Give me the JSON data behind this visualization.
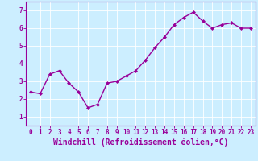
{
  "x": [
    0,
    1,
    2,
    3,
    4,
    5,
    6,
    7,
    8,
    9,
    10,
    11,
    12,
    13,
    14,
    15,
    16,
    17,
    18,
    19,
    20,
    21,
    22,
    23
  ],
  "y": [
    2.4,
    2.3,
    3.4,
    3.6,
    2.9,
    2.4,
    1.5,
    1.7,
    2.9,
    3.0,
    3.3,
    3.6,
    4.2,
    4.9,
    5.5,
    6.2,
    6.6,
    6.9,
    6.4,
    6.0,
    6.2,
    6.3,
    6.0,
    6.0
  ],
  "line_color": "#990099",
  "marker": "D",
  "marker_size": 2.0,
  "bg_color": "#cceeff",
  "grid_color": "#aaddcc",
  "xlabel": "Windchill (Refroidissement éolien,°C)",
  "xlabel_color": "#990099",
  "tick_color": "#990099",
  "ylim": [
    0.5,
    7.5
  ],
  "xlim": [
    -0.5,
    23.5
  ],
  "yticks": [
    1,
    2,
    3,
    4,
    5,
    6,
    7
  ],
  "xticks": [
    0,
    1,
    2,
    3,
    4,
    5,
    6,
    7,
    8,
    9,
    10,
    11,
    12,
    13,
    14,
    15,
    16,
    17,
    18,
    19,
    20,
    21,
    22,
    23
  ],
  "tick_fontsize": 5.5,
  "xlabel_fontsize": 7.0,
  "spine_color": "#990099",
  "line_width": 1.0,
  "marker_face_color": "#990099",
  "grid_linewidth": 0.5,
  "grid_color_white": "#d8f0ee"
}
